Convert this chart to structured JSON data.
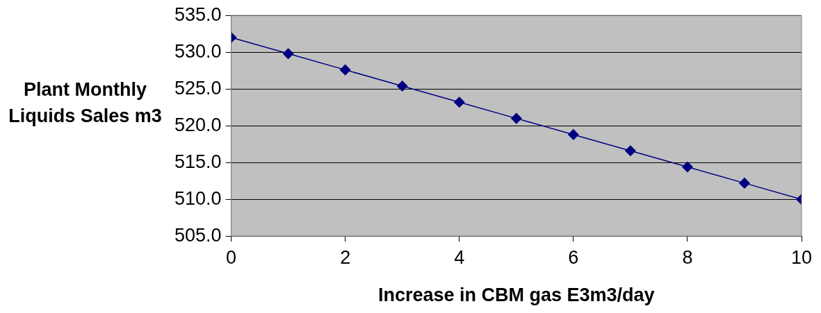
{
  "chart_data": {
    "type": "line",
    "xlabel": "Increase in CBM gas E3m3/day",
    "ylabel": "Plant Monthly Liquids Sales m3",
    "x": [
      0,
      1,
      2,
      3,
      4,
      5,
      6,
      7,
      8,
      9,
      10
    ],
    "series": [
      {
        "color": "#000080",
        "values": [
          532.0,
          529.8,
          527.6,
          525.4,
          523.2,
          521.0,
          518.8,
          516.6,
          514.4,
          512.2,
          510.0
        ]
      }
    ],
    "xlim": [
      0,
      10
    ],
    "xticks": [
      0,
      2,
      4,
      6,
      8,
      10
    ],
    "ylim": [
      505,
      535
    ],
    "yticks": [
      {
        "value": 505,
        "label": "505.0"
      },
      {
        "value": 510,
        "label": "510.0"
      },
      {
        "value": 515,
        "label": "515.0"
      },
      {
        "value": 520,
        "label": "520.0"
      },
      {
        "value": 525,
        "label": "525.0"
      },
      {
        "value": 530,
        "label": "530.0"
      },
      {
        "value": 535,
        "label": "535.0"
      }
    ],
    "grid": "y",
    "legend": false,
    "marker": "diamond",
    "line_style": "solid"
  }
}
